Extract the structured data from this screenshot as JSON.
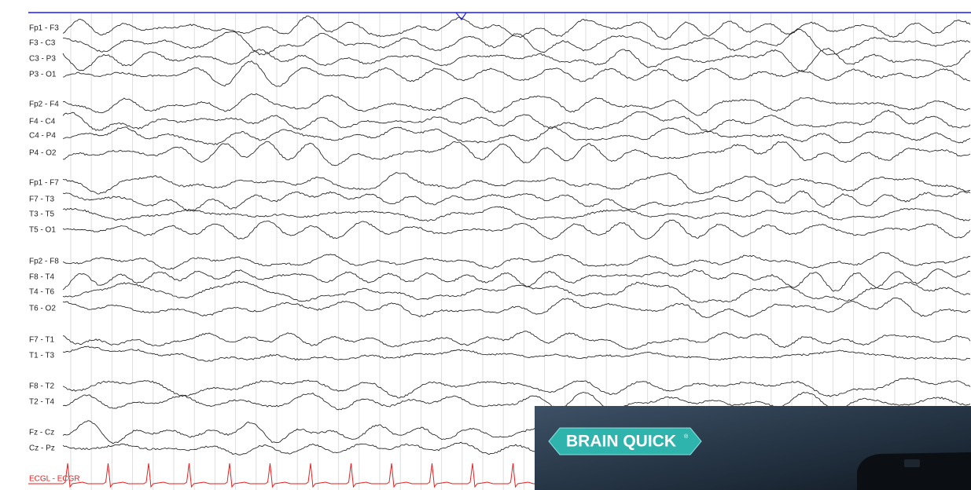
{
  "channels": [
    {
      "label": "Fp1 - F3"
    },
    {
      "label": "F3 - C3"
    },
    {
      "label": "C3 - P3"
    },
    {
      "label": "P3 - O1"
    },
    {
      "label": "Fp2 - F4"
    },
    {
      "label": "F4 - C4"
    },
    {
      "label": "C4 - P4"
    },
    {
      "label": "P4 - O2"
    },
    {
      "label": "Fp1 - F7"
    },
    {
      "label": "F7 - T3"
    },
    {
      "label": "T3 - T5"
    },
    {
      "label": "T5 - O1"
    },
    {
      "label": "Fp2 - F8"
    },
    {
      "label": "F8 - T4"
    },
    {
      "label": "T4 - T6"
    },
    {
      "label": "T6 - O2"
    },
    {
      "label": "F7 - T1"
    },
    {
      "label": "T1 - T3"
    },
    {
      "label": "F8 - T2"
    },
    {
      "label": "T2 - T4"
    },
    {
      "label": "Fz - Cz"
    },
    {
      "label": "Cz - Pz"
    }
  ],
  "ecg": {
    "label": "ECGL - ECGR"
  },
  "overlay": {
    "brand": "BRAIN QUICK",
    "mark": "®"
  }
}
